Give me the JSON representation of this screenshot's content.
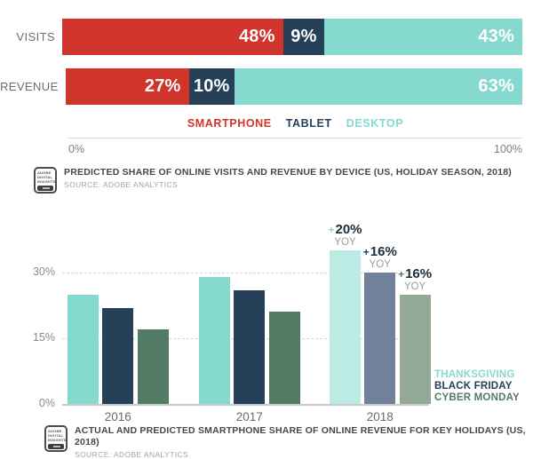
{
  "badge": {
    "text_lines": [
      "ADOBE",
      "DIGITAL",
      "INSIGHTS"
    ]
  },
  "colors": {
    "smartphone_red": "#d1342b",
    "tablet_navy": "#26405a",
    "desktop_teal": "#85d9ce",
    "cyber_monday_green": "#527c66",
    "annotation_value_text": "#1e2b38",
    "annotation_sub_text": "#9b9b9b",
    "axis_text": "#7f7f7f",
    "caption_title_text": "#474747",
    "caption_source_text": "#a3a3a3"
  },
  "chart_data": [
    {
      "type": "bar",
      "subtype": "horizontal_stacked",
      "categories": [
        "VISITS",
        "REVENUE"
      ],
      "series": [
        {
          "name": "SMARTPHONE",
          "color": "#d1342b",
          "values": [
            48,
            27
          ]
        },
        {
          "name": "TABLET",
          "color": "#26405a",
          "values": [
            9,
            10
          ]
        },
        {
          "name": "DESKTOP",
          "color": "#85d9ce",
          "values": [
            43,
            63
          ]
        }
      ],
      "value_labels": [
        [
          "48%",
          "9%",
          "43%"
        ],
        [
          "27%",
          "10%",
          "63%"
        ]
      ],
      "xlim": [
        0,
        100
      ],
      "x_ticks": [
        "0%",
        "100%"
      ],
      "legend_position": "bottom-center",
      "grid": "off",
      "title": "PREDICTED SHARE OF ONLINE VISITS AND REVENUE BY DEVICE (US, HOLIDAY SEASON, 2018)",
      "source": "SOURCE: ADOBE ANALYTICS"
    },
    {
      "type": "bar",
      "subtype": "vertical_grouped",
      "categories": [
        "2016",
        "2017",
        "2018"
      ],
      "series": [
        {
          "name": "THANKSGIVING",
          "color": "#85d9ce",
          "predicted_color": "#bcebe4",
          "values": [
            25,
            29,
            35
          ]
        },
        {
          "name": "BLACK FRIDAY",
          "color": "#26405a",
          "predicted_color": "#72819a",
          "values": [
            22,
            26,
            30
          ]
        },
        {
          "name": "CYBER MONDAY",
          "color": "#527c66",
          "predicted_color": "#93aa97",
          "values": [
            17,
            21,
            25
          ]
        }
      ],
      "predicted_category": "2018",
      "annotations": [
        {
          "category": "2018",
          "series": "THANKSGIVING",
          "value": "+20%",
          "sub": "YOY"
        },
        {
          "category": "2018",
          "series": "BLACK FRIDAY",
          "value": "+16%",
          "sub": "YOY"
        },
        {
          "category": "2018",
          "series": "CYBER MONDAY",
          "value": "+16%",
          "sub": "YOY"
        }
      ],
      "y_ticks": [
        {
          "value": 0,
          "label": "0%"
        },
        {
          "value": 15,
          "label": "15%"
        },
        {
          "value": 30,
          "label": "30%"
        }
      ],
      "ylim": [
        0,
        37.5
      ],
      "grid": "dashed-horizontal",
      "legend_position": "right-bottom",
      "title": "ACTUAL AND PREDICTED SMARTPHONE SHARE OF ONLINE REVENUE FOR KEY HOLIDAYS (US, 2018)",
      "source": "SOURCE: ADOBE ANALYTICS"
    }
  ]
}
